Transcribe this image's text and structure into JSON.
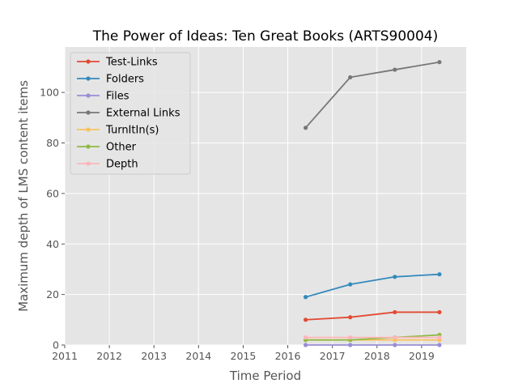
{
  "chart_data": {
    "type": "line",
    "title": "The Power of Ideas: Ten Great Books (ARTS90004)",
    "xlabel": "Time Period",
    "ylabel": "Maximum depth of LMS content items",
    "xlim": [
      2011,
      2020
    ],
    "ylim": [
      0,
      118
    ],
    "x_ticks": [
      2011,
      2012,
      2013,
      2014,
      2015,
      2016,
      2017,
      2018,
      2019
    ],
    "y_ticks": [
      0,
      20,
      40,
      60,
      80,
      100
    ],
    "grid": true,
    "legend_position": "top-left",
    "x": [
      2016.4,
      2017.4,
      2018.4,
      2019.4
    ],
    "series": [
      {
        "name": "Test-Links",
        "color": "#E24A33",
        "values": [
          10,
          11,
          13,
          13
        ]
      },
      {
        "name": "Folders",
        "color": "#348ABD",
        "values": [
          19,
          24,
          27,
          28
        ]
      },
      {
        "name": "Files",
        "color": "#988ED5",
        "values": [
          0,
          0,
          0,
          0
        ]
      },
      {
        "name": "External Links",
        "color": "#777777",
        "values": [
          86,
          106,
          109,
          112
        ]
      },
      {
        "name": "TurnItIn(s)",
        "color": "#FBC15E",
        "values": [
          2,
          2,
          2,
          2
        ]
      },
      {
        "name": "Other",
        "color": "#8EBA42",
        "values": [
          2,
          2,
          3,
          4
        ]
      },
      {
        "name": "Depth",
        "color": "#FFB5B8",
        "values": [
          3,
          3,
          3,
          3
        ]
      }
    ]
  }
}
